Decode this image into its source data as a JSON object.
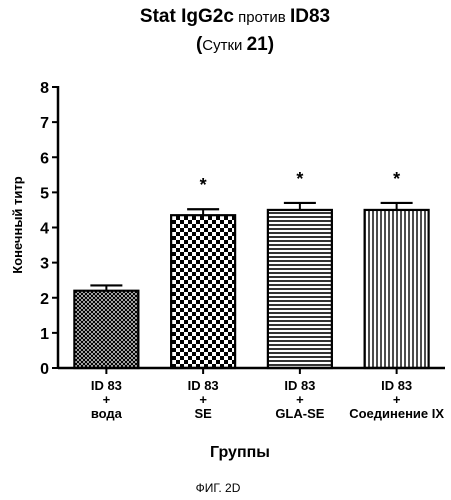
{
  "chart_data": {
    "type": "bar",
    "title_parts": [
      {
        "text": "Stat IgG2c",
        "style": "bold"
      },
      {
        "text": " против ",
        "style": "normal"
      },
      {
        "text": "ID83",
        "style": "bold"
      }
    ],
    "subtitle_parts": [
      {
        "text": "(",
        "style": "bold"
      },
      {
        "text": "Сутки ",
        "style": "normal"
      },
      {
        "text": "21",
        "style": "bold"
      },
      {
        "text": ")",
        "style": "bold"
      }
    ],
    "ylabel": "Конечный титр",
    "xlabel": "Группы",
    "ylim": [
      0,
      8
    ],
    "yticks": [
      "0",
      "1",
      "2",
      "3",
      "4",
      "5",
      "6",
      "7",
      "8"
    ],
    "categories": [
      [
        "ID 83",
        "+",
        "вода"
      ],
      [
        "ID 83",
        "+",
        "SE"
      ],
      [
        "ID 83",
        "+",
        "GLA-SE"
      ],
      [
        "ID 83",
        "+",
        "Соединение IX"
      ]
    ],
    "values": [
      2.2,
      4.35,
      4.5,
      4.5
    ],
    "errors": [
      0.15,
      0.17,
      0.2,
      0.2
    ],
    "significance": [
      "",
      "*",
      "*",
      "*"
    ],
    "patterns": [
      "crosshatch",
      "checker",
      "horizontal",
      "vertical"
    ]
  },
  "caption": "ФИГ. 2D"
}
